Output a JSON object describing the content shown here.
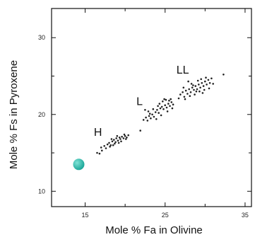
{
  "chart_data": {
    "type": "scatter",
    "title": "",
    "xlabel": "Mole % Fa in Olivine",
    "ylabel": "Mole % Fs in Pyroxene",
    "xlim": [
      10.8,
      35.8
    ],
    "ylim": [
      8,
      33.8
    ],
    "xticks": [
      15,
      25,
      35
    ],
    "xtick_labels": [
      "15",
      "25",
      "35"
    ],
    "xminor": [
      20,
      30
    ],
    "yticks": [
      10,
      20,
      30
    ],
    "ytick_labels": [
      "10",
      "20",
      "30"
    ],
    "yminor": [
      15,
      25
    ],
    "grid": false,
    "group_labels": [
      {
        "text": "H",
        "x": 16.6,
        "y": 17.2
      },
      {
        "text": "L",
        "x": 21.8,
        "y": 21.2
      },
      {
        "text": "LL",
        "x": 27.2,
        "y": 25.3
      }
    ],
    "highlight": {
      "x": 14.2,
      "y": 13.5,
      "color": "#1ea89a"
    },
    "point_color": "#222222",
    "series": [
      {
        "values": [
          [
            16.5,
            15.0
          ],
          [
            16.8,
            14.9
          ],
          [
            17.1,
            15.3
          ],
          [
            17.0,
            15.7
          ],
          [
            17.4,
            15.9
          ],
          [
            17.8,
            16.1
          ],
          [
            18.0,
            16.3
          ],
          [
            18.2,
            16.0
          ],
          [
            18.4,
            16.5
          ],
          [
            18.6,
            16.7
          ],
          [
            18.8,
            16.4
          ],
          [
            18.9,
            16.9
          ],
          [
            19.1,
            16.6
          ],
          [
            19.3,
            17.0
          ],
          [
            19.4,
            16.8
          ],
          [
            19.6,
            17.1
          ],
          [
            19.8,
            16.9
          ],
          [
            20.0,
            17.2
          ],
          [
            20.2,
            17.0
          ],
          [
            20.4,
            17.3
          ],
          [
            18.3,
            16.8
          ],
          [
            18.7,
            16.2
          ],
          [
            19.0,
            17.2
          ],
          [
            19.5,
            16.5
          ],
          [
            19.9,
            17.4
          ],
          [
            18.1,
            15.8
          ],
          [
            18.5,
            16.0
          ],
          [
            19.2,
            16.3
          ],
          [
            20.1,
            16.8
          ],
          [
            17.6,
            15.6
          ]
        ]
      },
      {
        "values": [
          [
            21.9,
            17.9
          ],
          [
            22.3,
            19.3
          ],
          [
            22.6,
            19.6
          ],
          [
            22.8,
            19.2
          ],
          [
            23.0,
            19.8
          ],
          [
            23.2,
            19.5
          ],
          [
            23.4,
            20.0
          ],
          [
            23.6,
            19.7
          ],
          [
            23.8,
            20.3
          ],
          [
            24.0,
            20.6
          ],
          [
            24.2,
            20.2
          ],
          [
            24.4,
            20.8
          ],
          [
            24.6,
            21.0
          ],
          [
            24.8,
            20.7
          ],
          [
            25.0,
            21.2
          ],
          [
            25.2,
            20.9
          ],
          [
            25.4,
            21.4
          ],
          [
            25.6,
            21.1
          ],
          [
            25.8,
            21.6
          ],
          [
            26.0,
            21.3
          ],
          [
            24.3,
            21.4
          ],
          [
            24.7,
            21.7
          ],
          [
            25.1,
            21.9
          ],
          [
            25.5,
            21.8
          ],
          [
            23.5,
            20.7
          ],
          [
            22.9,
            20.4
          ],
          [
            23.9,
            19.4
          ],
          [
            24.5,
            19.9
          ],
          [
            25.3,
            20.4
          ],
          [
            25.9,
            20.8
          ],
          [
            22.5,
            20.6
          ],
          [
            24.1,
            21.1
          ],
          [
            25.7,
            22.0
          ],
          [
            23.1,
            20.1
          ],
          [
            24.9,
            22.0
          ]
        ]
      },
      {
        "values": [
          [
            26.9,
            22.6
          ],
          [
            27.2,
            22.9
          ],
          [
            27.4,
            22.3
          ],
          [
            27.6,
            23.1
          ],
          [
            27.8,
            22.7
          ],
          [
            28.0,
            23.3
          ],
          [
            28.2,
            22.9
          ],
          [
            28.4,
            23.5
          ],
          [
            28.6,
            23.2
          ],
          [
            28.8,
            23.7
          ],
          [
            29.0,
            23.3
          ],
          [
            29.2,
            23.9
          ],
          [
            29.4,
            23.5
          ],
          [
            29.6,
            24.1
          ],
          [
            29.8,
            23.7
          ],
          [
            30.0,
            24.3
          ],
          [
            30.2,
            23.9
          ],
          [
            30.4,
            24.5
          ],
          [
            30.6,
            24.1
          ],
          [
            30.8,
            24.7
          ],
          [
            27.5,
            22.0
          ],
          [
            28.1,
            22.4
          ],
          [
            28.7,
            22.6
          ],
          [
            29.3,
            23.0
          ],
          [
            29.9,
            23.2
          ],
          [
            28.3,
            24.0
          ],
          [
            29.1,
            24.4
          ],
          [
            30.1,
            24.8
          ],
          [
            27.9,
            24.3
          ],
          [
            32.3,
            25.2
          ],
          [
            26.7,
            22.1
          ],
          [
            28.5,
            23.8
          ],
          [
            29.5,
            24.6
          ],
          [
            30.5,
            23.4
          ],
          [
            31.0,
            24.0
          ],
          [
            28.9,
            23.0
          ],
          [
            27.3,
            23.5
          ],
          [
            29.7,
            22.8
          ]
        ]
      }
    ]
  }
}
